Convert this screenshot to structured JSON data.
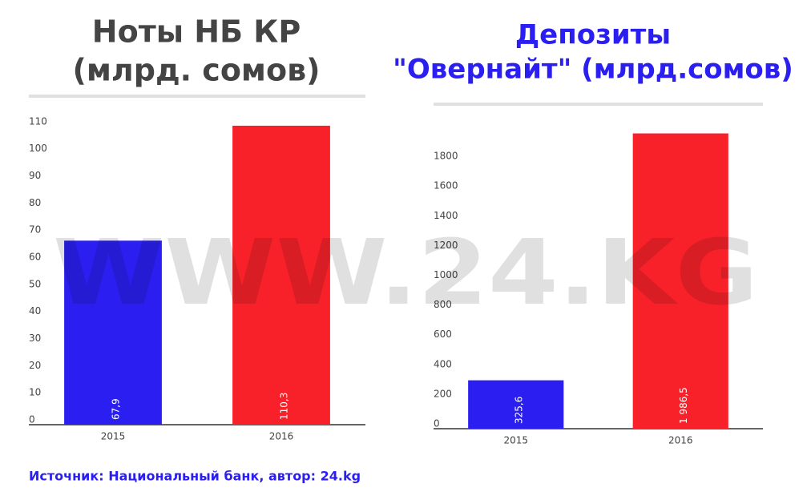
{
  "watermark": "WWW.24.KG",
  "source": "Источник: Национальный банк, автор:  24.kg",
  "chart_data": [
    {
      "type": "bar",
      "title": [
        "Ноты НБ КР",
        "(млрд. сомов)"
      ],
      "title_color": "#444444",
      "categories": [
        "2015",
        "2016"
      ],
      "series": [
        {
          "colors": [
            "#2a1ff0",
            "#f8212a"
          ],
          "values": [
            67.9,
            110.3
          ],
          "value_labels": [
            "67,9",
            "110,3"
          ]
        }
      ],
      "ylim": [
        0,
        115
      ],
      "yticks": [
        0,
        10,
        20,
        30,
        40,
        50,
        60,
        70,
        80,
        90,
        100,
        110
      ],
      "grid": false
    },
    {
      "type": "bar",
      "title": [
        "Депозиты",
        "\"Овернайт\" (млрд.сомов)"
      ],
      "title_color": "#2a1ff0",
      "categories": [
        "2015",
        "2016"
      ],
      "series": [
        {
          "colors": [
            "#2a1ff0",
            "#f8212a"
          ],
          "values": [
            325.6,
            1986.5
          ],
          "value_labels": [
            "325,6",
            "1 986,5"
          ]
        }
      ],
      "ylim": [
        0,
        2000
      ],
      "yticks": [
        0,
        200,
        400,
        600,
        800,
        1000,
        1200,
        1400,
        1600,
        1800
      ],
      "grid": false
    }
  ]
}
